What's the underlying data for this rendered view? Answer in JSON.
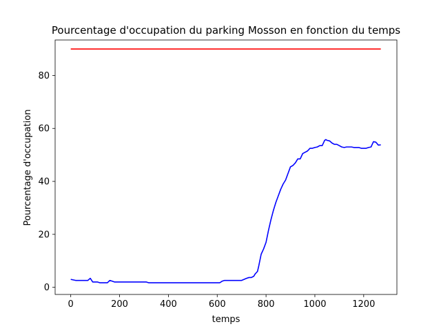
{
  "chart_data": {
    "type": "line",
    "title": "Pourcentage d'occupation du parking Mosson en fonction du temps",
    "xlabel": "temps",
    "ylabel": "Pourcentage d'occupation",
    "xlim": [
      -64,
      1336
    ],
    "ylim": [
      -2.7,
      93.4
    ],
    "xticks": [
      0,
      200,
      400,
      600,
      800,
      1000,
      1200
    ],
    "yticks": [
      0,
      20,
      40,
      60,
      80
    ],
    "grid": false,
    "colors": {
      "occupation": "#0000ff",
      "threshold": "#ff0000",
      "axes": "#000000"
    },
    "series": [
      {
        "color": "#0000ff",
        "x": [
          0,
          10,
          20,
          30,
          40,
          50,
          60,
          70,
          80,
          90,
          100,
          110,
          120,
          130,
          140,
          150,
          160,
          170,
          180,
          200,
          250,
          300,
          310,
          320,
          400,
          500,
          600,
          610,
          620,
          630,
          640,
          650,
          660,
          680,
          700,
          710,
          720,
          730,
          740,
          750,
          755,
          760,
          765,
          770,
          780,
          790,
          800,
          810,
          820,
          830,
          840,
          850,
          860,
          870,
          880,
          890,
          900,
          910,
          920,
          930,
          940,
          950,
          960,
          970,
          980,
          990,
          1000,
          1010,
          1020,
          1030,
          1040,
          1045,
          1050,
          1060,
          1070,
          1080,
          1090,
          1100,
          1110,
          1120,
          1130,
          1140,
          1150,
          1160,
          1170,
          1180,
          1190,
          1200,
          1210,
          1220,
          1230,
          1240,
          1250,
          1260,
          1270
        ],
        "y": [
          3,
          2.8,
          2.6,
          2.6,
          2.6,
          2.6,
          2.6,
          2.6,
          3.4,
          2.0,
          2.0,
          2.0,
          1.7,
          1.7,
          1.7,
          1.7,
          2.6,
          2.3,
          2.0,
          2.0,
          2.0,
          2.0,
          2.0,
          1.7,
          1.7,
          1.7,
          1.7,
          1.7,
          2.3,
          2.6,
          2.6,
          2.6,
          2.6,
          2.6,
          2.6,
          3.0,
          3.4,
          3.7,
          3.7,
          4.2,
          5.0,
          5.5,
          6.0,
          8.0,
          12.5,
          14.5,
          17.0,
          21.5,
          25.5,
          29.0,
          32.0,
          34.5,
          37.0,
          39.0,
          40.5,
          43.0,
          45.5,
          46.0,
          47.0,
          48.5,
          48.5,
          50.5,
          51.0,
          51.5,
          52.5,
          52.5,
          52.8,
          53.0,
          53.5,
          53.5,
          55.5,
          55.8,
          55.5,
          55.3,
          54.5,
          54.0,
          54.0,
          53.5,
          53.0,
          52.8,
          53.0,
          53.0,
          53.0,
          52.8,
          52.8,
          52.8,
          52.5,
          52.5,
          52.5,
          52.8,
          53.0,
          55.0,
          54.8,
          53.7,
          53.8
        ]
      },
      {
        "color": "#ff0000",
        "x": [
          0,
          1270
        ],
        "y": [
          90,
          90
        ]
      }
    ]
  }
}
